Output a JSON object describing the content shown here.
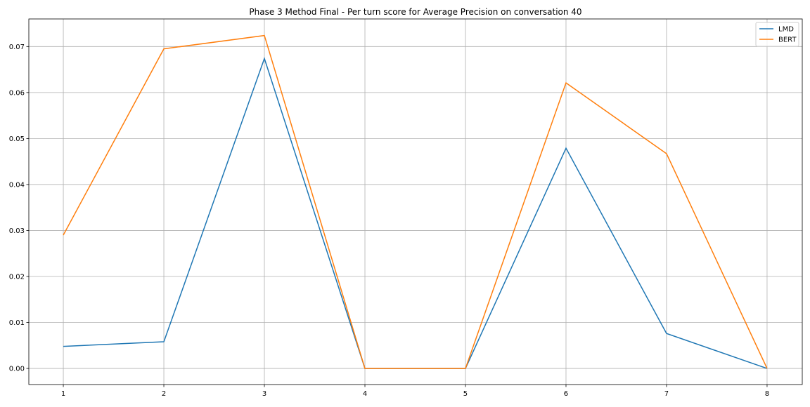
{
  "chart_data": {
    "type": "line",
    "title": "Phase 3 Method Final - Per turn score for Average Precision on conversation 40",
    "xlabel": "",
    "ylabel": "",
    "x": [
      1,
      2,
      3,
      4,
      5,
      6,
      7,
      8
    ],
    "xticks": [
      "1",
      "2",
      "3",
      "4",
      "5",
      "6",
      "7",
      "8"
    ],
    "yticks": [
      "0.00",
      "0.01",
      "0.02",
      "0.03",
      "0.04",
      "0.05",
      "0.06",
      "0.07"
    ],
    "ytick_values": [
      0,
      0.01,
      0.02,
      0.03,
      0.04,
      0.05,
      0.06,
      0.07
    ],
    "xlim": [
      0.657,
      8.35
    ],
    "ylim": [
      -0.0035,
      0.076
    ],
    "grid": true,
    "legend_position": "top-right",
    "series": [
      {
        "name": "LMD",
        "color": "#1f77b4",
        "values": [
          0.0048,
          0.0058,
          0.0674,
          0.0,
          0.0,
          0.0479,
          0.0076,
          0.0
        ]
      },
      {
        "name": "BERT",
        "color": "#ff7f0e",
        "values": [
          0.029,
          0.0695,
          0.0724,
          0.0,
          0.0,
          0.0621,
          0.0467,
          0.0
        ]
      }
    ]
  }
}
